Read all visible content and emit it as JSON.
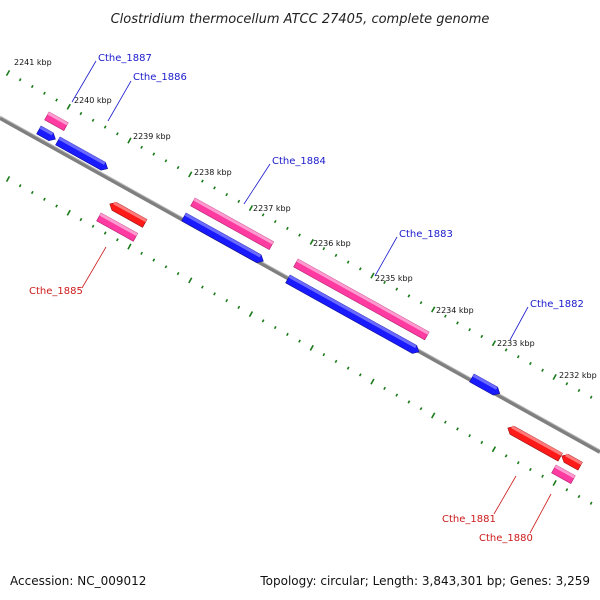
{
  "title": "Clostridium thermocellum ATCC 27405, complete genome",
  "footer": {
    "accession": "Accession: NC_009012",
    "summary": "Topology: circular; Length: 3,843,301 bp; Genes: 3,259"
  },
  "colors": {
    "backbone": "#7f7f7f",
    "tick": "#1a7a1a",
    "forward_gene": "#ff3aa0",
    "forward_cds": "#1a1aff",
    "reverse_gene": "#ff3aa0",
    "reverse_cds": "#ff1a1a",
    "forward_label": "#1a1acc",
    "reverse_label": "#cc1a1a"
  },
  "kbp_labels": [
    "2241 kbp",
    "2240 kbp",
    "2239 kbp",
    "2238 kbp",
    "2237 kbp",
    "2236 kbp",
    "2235 kbp",
    "2234 kbp",
    "2233 kbp",
    "2232 kbp"
  ],
  "genes": [
    {
      "label": "Cthe_1887",
      "strand": "forward"
    },
    {
      "label": "Cthe_1886",
      "strand": "forward"
    },
    {
      "label": "Cthe_1884",
      "strand": "forward"
    },
    {
      "label": "Cthe_1883",
      "strand": "forward"
    },
    {
      "label": "Cthe_1882",
      "strand": "forward"
    },
    {
      "label": "Cthe_1885",
      "strand": "reverse"
    },
    {
      "label": "Cthe_1881",
      "strand": "reverse"
    },
    {
      "label": "Cthe_1880",
      "strand": "reverse"
    }
  ]
}
